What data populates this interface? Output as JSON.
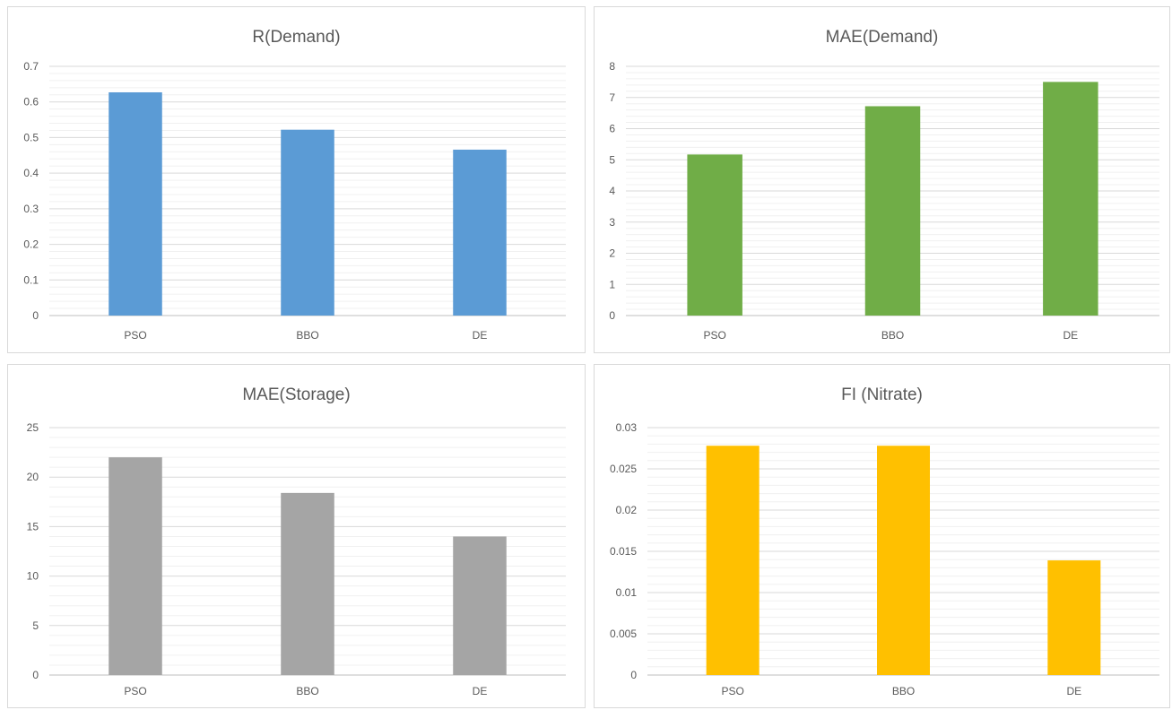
{
  "chart_data": [
    {
      "type": "bar",
      "title": "R(Demand)",
      "categories": [
        "PSO",
        "BBO",
        "DE"
      ],
      "values": [
        0.627,
        0.522,
        0.466
      ],
      "ylim": [
        0,
        0.7
      ],
      "yticks": [
        0,
        0.1,
        0.2,
        0.3,
        0.4,
        0.5,
        0.6,
        0.7
      ],
      "ytick_labels": [
        "0",
        "0.1",
        "0.2",
        "0.3",
        "0.4",
        "0.5",
        "0.6",
        "0.7"
      ],
      "grid": true,
      "color": "#5b9bd5"
    },
    {
      "type": "bar",
      "title": "MAE(Demand)",
      "categories": [
        "PSO",
        "BBO",
        "DE"
      ],
      "values": [
        5.17,
        6.72,
        7.5
      ],
      "ylim": [
        0,
        8
      ],
      "yticks": [
        0,
        1,
        2,
        3,
        4,
        5,
        6,
        7,
        8
      ],
      "ytick_labels": [
        "0",
        "1",
        "2",
        "3",
        "4",
        "5",
        "6",
        "7",
        "8"
      ],
      "grid": true,
      "color": "#70ad47"
    },
    {
      "type": "bar",
      "title": "MAE(Storage)",
      "categories": [
        "PSO",
        "BBO",
        "DE"
      ],
      "values": [
        22.0,
        18.4,
        14.0
      ],
      "ylim": [
        0,
        25
      ],
      "yticks": [
        0,
        5,
        10,
        15,
        20,
        25
      ],
      "ytick_labels": [
        "0",
        "5",
        "10",
        "15",
        "20",
        "25"
      ],
      "grid": true,
      "color": "#a5a5a5"
    },
    {
      "type": "bar",
      "title": "FI (Nitrate)",
      "categories": [
        "PSO",
        "BBO",
        "DE"
      ],
      "values": [
        0.0278,
        0.0278,
        0.0139
      ],
      "ylim": [
        0,
        0.03
      ],
      "yticks": [
        0,
        0.005,
        0.01,
        0.015,
        0.02,
        0.025,
        0.03
      ],
      "ytick_labels": [
        "0",
        "0.005",
        "0.01",
        "0.015",
        "0.02",
        "0.025",
        "0.03"
      ],
      "grid": true,
      "color": "#ffc000"
    }
  ]
}
